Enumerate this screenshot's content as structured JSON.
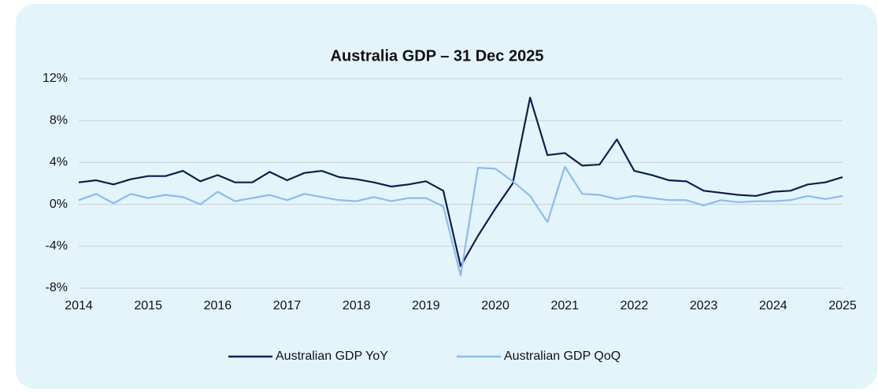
{
  "chart_data": {
    "type": "line",
    "title": "Australia GDP – 31 Dec 2025",
    "x": [
      2014,
      2014.25,
      2014.5,
      2014.75,
      2015,
      2015.25,
      2015.5,
      2015.75,
      2016,
      2016.25,
      2016.5,
      2016.75,
      2017,
      2017.25,
      2017.5,
      2017.75,
      2018,
      2018.25,
      2018.5,
      2018.75,
      2019,
      2019.25,
      2019.5,
      2019.75,
      2020,
      2020.25,
      2020.5,
      2020.75,
      2021,
      2021.25,
      2021.5,
      2021.75,
      2022,
      2022.25,
      2022.5,
      2022.75,
      2023,
      2023.25,
      2023.5,
      2023.75,
      2024,
      2024.25,
      2024.5,
      2024.75,
      2025
    ],
    "series": [
      {
        "name": "Australian GDP YoY",
        "color": "#0b1f4d",
        "values": [
          2.1,
          2.3,
          1.9,
          2.4,
          2.7,
          2.7,
          3.2,
          2.2,
          2.8,
          2.1,
          2.1,
          3.1,
          2.3,
          3.0,
          3.2,
          2.6,
          2.4,
          2.1,
          1.7,
          1.9,
          2.2,
          1.3,
          -5.9,
          -3.0,
          -0.4,
          2.0,
          10.2,
          4.7,
          4.9,
          3.7,
          3.8,
          6.2,
          3.2,
          2.8,
          2.3,
          2.2,
          1.3,
          1.1,
          0.9,
          0.8,
          1.2,
          1.3,
          1.9,
          2.1,
          2.6
        ]
      },
      {
        "name": "Australian GDP QoQ",
        "color": "#8bbcf0",
        "values": [
          0.4,
          1.0,
          0.1,
          1.0,
          0.6,
          0.9,
          0.7,
          0.0,
          1.2,
          0.3,
          0.6,
          0.9,
          0.4,
          1.0,
          0.7,
          0.4,
          0.3,
          0.7,
          0.3,
          0.6,
          0.6,
          -0.2,
          -6.8,
          3.5,
          3.4,
          2.2,
          0.8,
          -1.7,
          3.6,
          1.0,
          0.9,
          0.5,
          0.8,
          0.6,
          0.4,
          0.4,
          -0.1,
          0.4,
          0.2,
          0.3,
          0.3,
          0.4,
          0.8,
          0.5,
          0.8
        ]
      }
    ],
    "xlim": [
      2014,
      2025
    ],
    "xticks": [
      2014,
      2015,
      2016,
      2017,
      2018,
      2019,
      2020,
      2021,
      2022,
      2023,
      2024,
      2025
    ],
    "ylim": [
      -8,
      12
    ],
    "yticks": [
      {
        "value": -8,
        "label": "-8%"
      },
      {
        "value": -4,
        "label": "-4%"
      },
      {
        "value": 0,
        "label": "0%"
      },
      {
        "value": 4,
        "label": "4%"
      },
      {
        "value": 8,
        "label": "8%"
      },
      {
        "value": 12,
        "label": "12%"
      }
    ],
    "grid": true,
    "legend": "bottom"
  }
}
